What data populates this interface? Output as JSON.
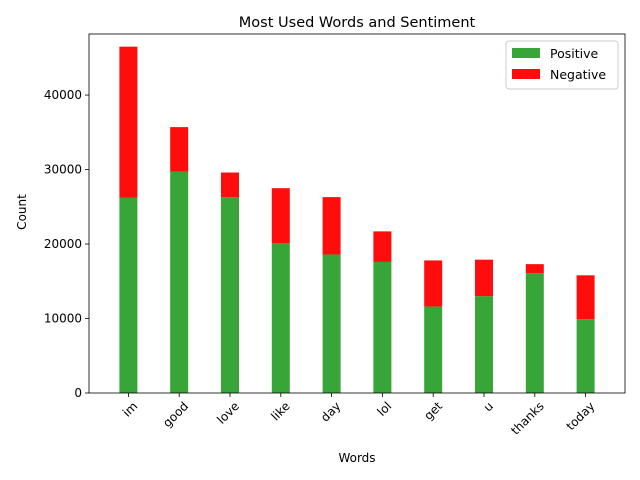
{
  "chart_data": {
    "type": "bar",
    "stacked": true,
    "title": "Most Used Words and Sentiment",
    "xlabel": "Words",
    "ylabel": "Count",
    "categories": [
      "im",
      "good",
      "love",
      "like",
      "day",
      "lol",
      "get",
      "u",
      "thanks",
      "today"
    ],
    "series": [
      {
        "name": "Positive",
        "color": "#2ca02c",
        "values": [
          26200,
          29700,
          26300,
          20100,
          18600,
          17600,
          11600,
          13000,
          16100,
          9900
        ]
      },
      {
        "name": "Negative",
        "color": "#ff0000",
        "values": [
          20300,
          6000,
          3300,
          7400,
          7700,
          4100,
          6200,
          4900,
          1200,
          5900
        ]
      }
    ],
    "ylim": [
      0,
      48200
    ],
    "yticks": [
      0,
      10000,
      20000,
      30000,
      40000
    ],
    "x_tick_rotation": 45,
    "grid": false,
    "legend": "upper-right"
  }
}
